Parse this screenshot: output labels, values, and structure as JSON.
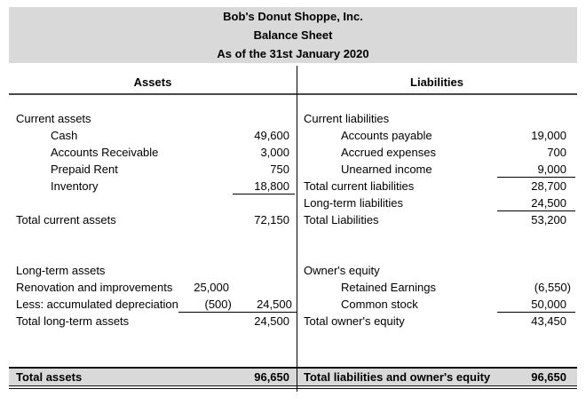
{
  "title_block": {
    "company": "Bob's Donut Shoppe, Inc.",
    "report": "Balance Sheet",
    "date": "As of the 31st January 2020"
  },
  "column_headers": {
    "assets": "Assets",
    "liabilities": "Liabilities"
  },
  "assets": {
    "current_title": "Current assets",
    "current_items": [
      {
        "label": "Cash",
        "value": "49,600"
      },
      {
        "label": "Accounts Receivable",
        "value": "3,000"
      },
      {
        "label": "Prepaid Rent",
        "value": "750"
      },
      {
        "label": "Inventory",
        "value": "18,800"
      }
    ],
    "total_current": {
      "label": "Total current assets",
      "value": "72,150"
    },
    "longterm_title": "Long-term assets",
    "longterm_items": [
      {
        "label": "Renovation and improvements",
        "cost": "25,000",
        "net": ""
      },
      {
        "label": "Less: accumulated depreciation",
        "cost": "(500)",
        "net": "24,500"
      }
    ],
    "total_longterm": {
      "label": "Total long-term assets",
      "value": "24,500"
    },
    "grand_total": {
      "label": "Total assets",
      "value": "96,650"
    }
  },
  "liabilities_equity": {
    "current_title": "Current liabilities",
    "current_items": [
      {
        "label": "Accounts payable",
        "value": "19,000"
      },
      {
        "label": "Accrued expenses",
        "value": "700"
      },
      {
        "label": "Unearned income",
        "value": "9,000"
      }
    ],
    "total_current": {
      "label": "Total current liabilities",
      "value": "28,700"
    },
    "longterm": {
      "label": "Long-term liabilities",
      "value": "24,500"
    },
    "total_liabilities": {
      "label": "Total Liabilities",
      "value": "53,200"
    },
    "equity_title": "Owner's equity",
    "equity_items": [
      {
        "label": "Retained Earnings",
        "value": "(6,550)"
      },
      {
        "label": "Common stock",
        "value": "50,000"
      }
    ],
    "total_equity": {
      "label": "Total owner's equity",
      "value": "43,450"
    },
    "grand_total": {
      "label": "Total liabilities and owner's equity",
      "value": "96,650"
    }
  },
  "colors": {
    "header_fill": "#d9d9d9",
    "total_row_fill": "#d9d9d9",
    "header_rule": "#4a4a4a",
    "line": "#000000"
  }
}
